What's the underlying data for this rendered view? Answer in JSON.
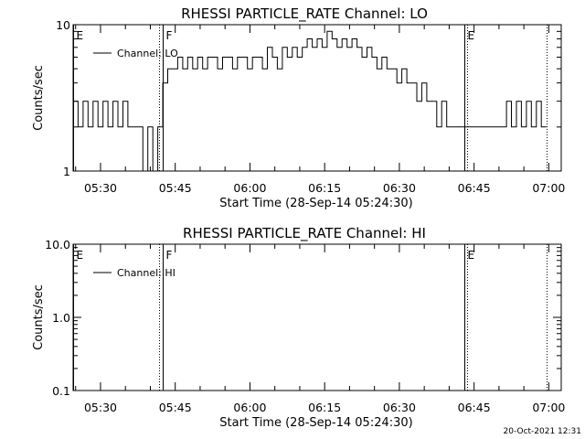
{
  "footer": {
    "timestamp": "20-Oct-2021 12:31"
  },
  "chart_data": [
    {
      "type": "line",
      "title": "RHESSI PARTICLE_RATE Channel: LO",
      "xlabel": "Start Time (28-Sep-14 05:24:30)",
      "ylabel": "Counts/sec",
      "y_scale": "log",
      "ylim": [
        1,
        10
      ],
      "y_ticks": [
        "1",
        "10"
      ],
      "xlim_minutes_after_start": [
        0,
        98
      ],
      "x_ticks": [
        "05:30",
        "05:45",
        "06:00",
        "06:15",
        "06:30",
        "06:45",
        "07:00"
      ],
      "legend": {
        "label": "Channel: LO",
        "position": "top-left"
      },
      "events": [
        {
          "label": "E",
          "time": "05:24:30",
          "style": "solid"
        },
        {
          "label": "F",
          "time": "05:42:30",
          "style": "solid"
        },
        {
          "label": "",
          "time": "05:41:50",
          "style": "dotted"
        },
        {
          "label": "E",
          "time": "06:43:00",
          "style": "solid"
        },
        {
          "label": "",
          "time": "06:43:40",
          "style": "dotted"
        },
        {
          "label": "",
          "time": "06:59:30",
          "style": "dotted"
        }
      ],
      "series": [
        {
          "name": "Channel: LO",
          "x": [
            "05:24:30",
            "05:25:30",
            "05:26:30",
            "05:27:30",
            "05:28:30",
            "05:29:30",
            "05:30:30",
            "05:31:30",
            "05:32:30",
            "05:33:30",
            "05:34:30",
            "05:35:30",
            "05:36:30",
            "05:37:30",
            "05:38:30",
            "05:39:30",
            "05:40:30",
            "05:41:30",
            "05:42:30",
            "05:43:30",
            "05:44:30",
            "05:45:30",
            "05:46:30",
            "05:47:30",
            "05:48:30",
            "05:49:30",
            "05:50:30",
            "05:51:30",
            "05:52:30",
            "05:53:30",
            "05:54:30",
            "05:55:30",
            "05:56:30",
            "05:57:30",
            "05:58:30",
            "05:59:30",
            "06:00:30",
            "06:01:30",
            "06:02:30",
            "06:03:30",
            "06:04:30",
            "06:05:30",
            "06:06:30",
            "06:07:30",
            "06:08:30",
            "06:09:30",
            "06:10:30",
            "06:11:30",
            "06:12:30",
            "06:13:30",
            "06:14:30",
            "06:15:30",
            "06:16:30",
            "06:17:30",
            "06:18:30",
            "06:19:30",
            "06:20:30",
            "06:21:30",
            "06:22:30",
            "06:23:30",
            "06:24:30",
            "06:25:30",
            "06:26:30",
            "06:27:30",
            "06:28:30",
            "06:29:30",
            "06:30:30",
            "06:31:30",
            "06:32:30",
            "06:33:30",
            "06:34:30",
            "06:35:30",
            "06:36:30",
            "06:37:30",
            "06:38:30",
            "06:39:30",
            "06:40:30",
            "06:41:30",
            "06:42:30",
            "06:43:30",
            "06:44:30",
            "06:45:30",
            "06:46:30",
            "06:47:30",
            "06:48:30",
            "06:49:30",
            "06:50:30",
            "06:51:30",
            "06:52:30",
            "06:53:30",
            "06:54:30",
            "06:55:30",
            "06:56:30",
            "06:57:30",
            "06:58:30"
          ],
          "y": [
            3,
            2,
            3,
            2,
            3,
            2,
            3,
            2,
            3,
            2,
            3,
            2,
            2,
            2,
            1,
            2,
            1,
            2,
            4,
            5,
            5,
            6,
            5,
            6,
            5,
            6,
            5,
            6,
            6,
            5,
            6,
            6,
            5,
            6,
            6,
            5,
            6,
            6,
            5,
            7,
            6,
            5,
            7,
            6,
            7,
            6,
            7,
            8,
            7,
            8,
            7,
            9,
            8,
            7,
            8,
            7,
            8,
            7,
            6,
            7,
            6,
            5,
            6,
            5,
            5,
            4,
            5,
            4,
            4,
            3,
            4,
            3,
            3,
            2,
            3,
            2,
            2,
            2,
            2,
            2,
            2,
            2,
            2,
            2,
            2,
            2,
            2,
            3,
            2,
            3,
            2,
            3,
            2,
            3,
            2
          ]
        }
      ]
    },
    {
      "type": "line",
      "title": "RHESSI PARTICLE_RATE Channel: HI",
      "xlabel": "Start Time (28-Sep-14 05:24:30)",
      "ylabel": "Counts/sec",
      "y_scale": "log",
      "ylim": [
        0.1,
        10.0
      ],
      "y_ticks": [
        "0.1",
        "1.0",
        "10.0"
      ],
      "xlim_minutes_after_start": [
        0,
        98
      ],
      "x_ticks": [
        "05:30",
        "05:45",
        "06:00",
        "06:15",
        "06:30",
        "06:45",
        "07:00"
      ],
      "legend": {
        "label": "Channel: HI",
        "position": "top-left"
      },
      "events": [
        {
          "label": "E",
          "time": "05:24:30",
          "style": "solid"
        },
        {
          "label": "F",
          "time": "05:42:30",
          "style": "solid"
        },
        {
          "label": "",
          "time": "05:41:50",
          "style": "dotted"
        },
        {
          "label": "E",
          "time": "06:43:00",
          "style": "solid"
        },
        {
          "label": "",
          "time": "06:43:40",
          "style": "dotted"
        },
        {
          "label": "",
          "time": "06:59:30",
          "style": "dotted"
        }
      ],
      "series": [
        {
          "name": "Channel: HI",
          "x": [],
          "y": []
        }
      ]
    }
  ]
}
